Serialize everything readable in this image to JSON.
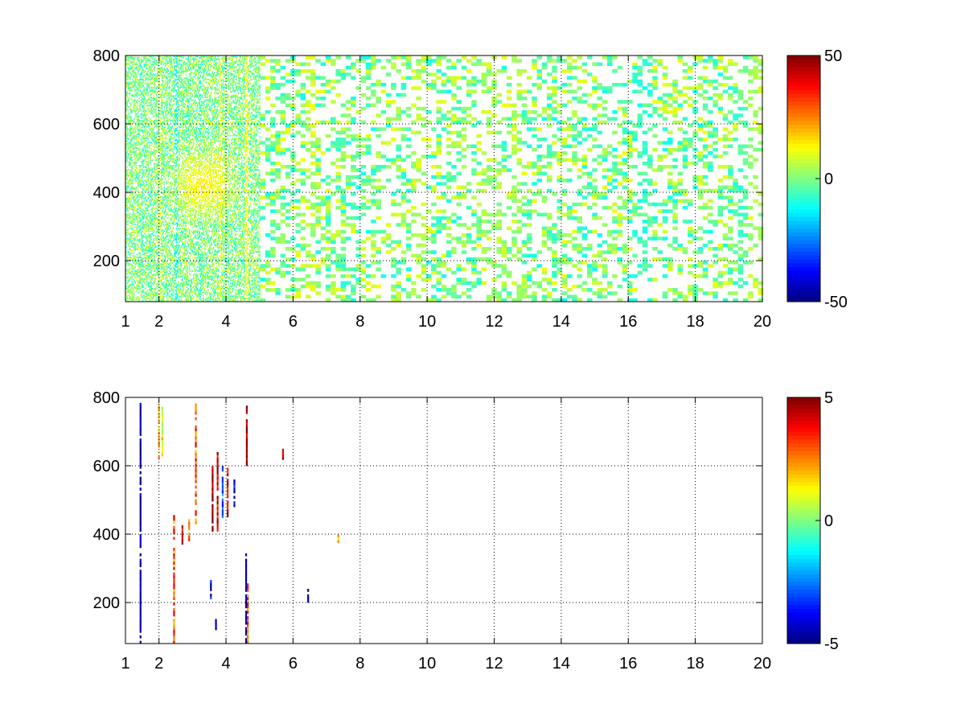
{
  "chart_data": [
    {
      "type": "heatmap",
      "title": "",
      "xlabel": "",
      "ylabel": "",
      "xlim": [
        1,
        20
      ],
      "ylim": [
        80,
        800
      ],
      "x_ticks": [
        1,
        2,
        4,
        6,
        8,
        10,
        12,
        14,
        16,
        18,
        20
      ],
      "y_ticks": [
        200,
        400,
        600,
        800
      ],
      "grid": true,
      "colorbar": {
        "colormap": "jet",
        "min": -50,
        "max": 50,
        "ticks": [
          50,
          0,
          -50
        ]
      },
      "pattern": {
        "description_free_density": "sparse",
        "x_start": 1,
        "x_end": 20,
        "fine_until_x": 5,
        "x_step_fine": 0.03,
        "x_step_coarse": 0.15,
        "y_step_fine": 4,
        "y_step_coarse": 10,
        "fill_fraction_fine": 0.5,
        "fill_fraction_coarse": 0.35,
        "value_spread": 22,
        "hotspot": {
          "x": 3.3,
          "y": 420,
          "value": 16
        },
        "columns": [
          {
            "x": 1.5,
            "v": -8
          },
          {
            "x": 2.0,
            "v": 14
          },
          {
            "x": 2.5,
            "v": -16
          },
          {
            "x": 3.2,
            "v": -14
          },
          {
            "x": 3.8,
            "v": 18
          },
          {
            "x": 4.6,
            "v": 20
          },
          {
            "x": 6.4,
            "v": 10
          },
          {
            "x": 9.7,
            "v": 8
          },
          {
            "x": 11.7,
            "v": 6
          },
          {
            "x": 12.0,
            "v": 4
          },
          {
            "x": 12.6,
            "v": 6
          },
          {
            "x": 16.4,
            "v": -10
          },
          {
            "x": 19.3,
            "v": -6
          },
          {
            "x": 19.7,
            "v": 8
          }
        ]
      }
    },
    {
      "type": "heatmap",
      "title": "",
      "xlabel": "",
      "ylabel": "",
      "xlim": [
        1,
        20
      ],
      "ylim": [
        80,
        800
      ],
      "x_ticks": [
        1,
        2,
        4,
        6,
        8,
        10,
        12,
        14,
        16,
        18,
        20
      ],
      "y_ticks": [
        200,
        400,
        600,
        800
      ],
      "grid": true,
      "colorbar": {
        "colormap": "jet",
        "min": -5,
        "max": 5,
        "ticks": [
          5,
          0,
          -5
        ]
      },
      "streaks": [
        {
          "x": 1.45,
          "y0": 80,
          "y1": 780,
          "v": -5
        },
        {
          "x": 2.0,
          "y0": 620,
          "y1": 780,
          "v": 2
        },
        {
          "x": 2.1,
          "y0": 620,
          "y1": 770,
          "v": 1
        },
        {
          "x": 2.45,
          "y0": 80,
          "y1": 450,
          "v": 3
        },
        {
          "x": 2.7,
          "y0": 370,
          "y1": 420,
          "v": 4
        },
        {
          "x": 2.9,
          "y0": 380,
          "y1": 440,
          "v": 3
        },
        {
          "x": 3.1,
          "y0": 430,
          "y1": 780,
          "v": 3
        },
        {
          "x": 3.6,
          "y0": 400,
          "y1": 600,
          "v": 5
        },
        {
          "x": 3.75,
          "y0": 400,
          "y1": 640,
          "v": 4
        },
        {
          "x": 3.9,
          "y0": 440,
          "y1": 600,
          "v": -3
        },
        {
          "x": 4.05,
          "y0": 450,
          "y1": 600,
          "v": 4
        },
        {
          "x": 4.25,
          "y0": 480,
          "y1": 560,
          "v": -4
        },
        {
          "x": 4.6,
          "y0": 80,
          "y1": 350,
          "v": -5
        },
        {
          "x": 4.65,
          "y0": 80,
          "y1": 250,
          "v": 3
        },
        {
          "x": 4.62,
          "y0": 600,
          "y1": 780,
          "v": 5
        },
        {
          "x": 5.7,
          "y0": 610,
          "y1": 650,
          "v": 4
        },
        {
          "x": 6.45,
          "y0": 200,
          "y1": 240,
          "v": -5
        },
        {
          "x": 7.35,
          "y0": 375,
          "y1": 395,
          "v": 2
        },
        {
          "x": 3.55,
          "y0": 210,
          "y1": 260,
          "v": -4
        },
        {
          "x": 3.7,
          "y0": 120,
          "y1": 150,
          "v": -5
        }
      ]
    }
  ]
}
